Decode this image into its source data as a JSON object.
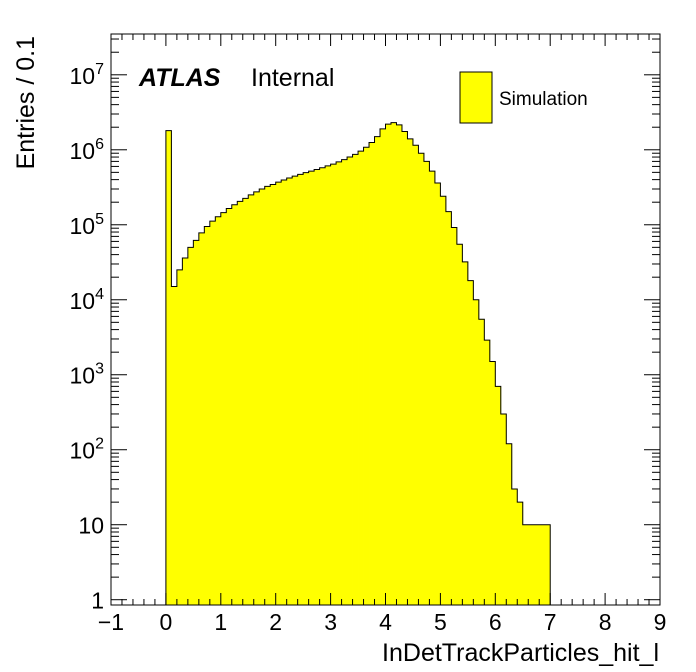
{
  "chart_data": {
    "type": "histogram",
    "xlabel": "InDetTrackParticles_hit_l",
    "ylabel": "Entries / 0.1",
    "x_range": [
      -1,
      9
    ],
    "y_range": [
      0.85,
      35000000
    ],
    "y_scale": "log",
    "bin_width": 0.1,
    "x_ticks": [
      -1,
      0,
      1,
      2,
      3,
      4,
      5,
      6,
      7,
      8,
      9
    ],
    "x_tick_labels": [
      "−1",
      "0",
      "1",
      "2",
      "3",
      "4",
      "5",
      "6",
      "7",
      "8",
      "9"
    ],
    "y_ticks": [
      {
        "value": 1,
        "base": "1",
        "exp": ""
      },
      {
        "value": 10,
        "base": "10",
        "exp": ""
      },
      {
        "value": 100,
        "base": "10",
        "exp": "2"
      },
      {
        "value": 1000,
        "base": "10",
        "exp": "3"
      },
      {
        "value": 10000,
        "base": "10",
        "exp": "4"
      },
      {
        "value": 100000,
        "base": "10",
        "exp": "5"
      },
      {
        "value": 1000000,
        "base": "10",
        "exp": "6"
      },
      {
        "value": 10000000,
        "base": "10",
        "exp": "7"
      }
    ],
    "series": [
      {
        "name": "Simulation",
        "color": "#ffff00",
        "edge_color": "#000000",
        "bin_low_edges": [
          0.0,
          0.1,
          0.2,
          0.3,
          0.4,
          0.5,
          0.6,
          0.7,
          0.8,
          0.9,
          1.0,
          1.1,
          1.2,
          1.3,
          1.4,
          1.5,
          1.6,
          1.7,
          1.8,
          1.9,
          2.0,
          2.1,
          2.2,
          2.3,
          2.4,
          2.5,
          2.6,
          2.7,
          2.8,
          2.9,
          3.0,
          3.1,
          3.2,
          3.3,
          3.4,
          3.5,
          3.6,
          3.7,
          3.8,
          3.9,
          4.0,
          4.1,
          4.2,
          4.3,
          4.4,
          4.5,
          4.6,
          4.7,
          4.8,
          4.9,
          5.0,
          5.1,
          5.2,
          5.3,
          5.4,
          5.5,
          5.6,
          5.7,
          5.8,
          5.9,
          6.0,
          6.1,
          6.2,
          6.3,
          6.4,
          6.5,
          6.6,
          6.7,
          6.8,
          6.9
        ],
        "values": [
          1800000,
          15000,
          25000,
          36000,
          50000,
          62000,
          78000,
          95000,
          112000,
          128000,
          145000,
          165000,
          185000,
          205000,
          225000,
          250000,
          275000,
          300000,
          325000,
          345000,
          370000,
          395000,
          420000,
          445000,
          470000,
          495000,
          520000,
          545000,
          575000,
          610000,
          645000,
          690000,
          740000,
          800000,
          870000,
          960000,
          1080000,
          1250000,
          1500000,
          1900000,
          2200000,
          2300000,
          2150000,
          1750000,
          1400000,
          1150000,
          900000,
          700000,
          520000,
          360000,
          240000,
          150000,
          92000,
          55000,
          32000,
          18000,
          10000,
          5500,
          2900,
          1500,
          700,
          300,
          120,
          30,
          20,
          10,
          10,
          10,
          10,
          10
        ]
      }
    ],
    "legend": {
      "entries": [
        "Simulation"
      ],
      "position": "top-right"
    }
  },
  "annotation": {
    "brand": "ATLAS",
    "status": "Internal"
  }
}
